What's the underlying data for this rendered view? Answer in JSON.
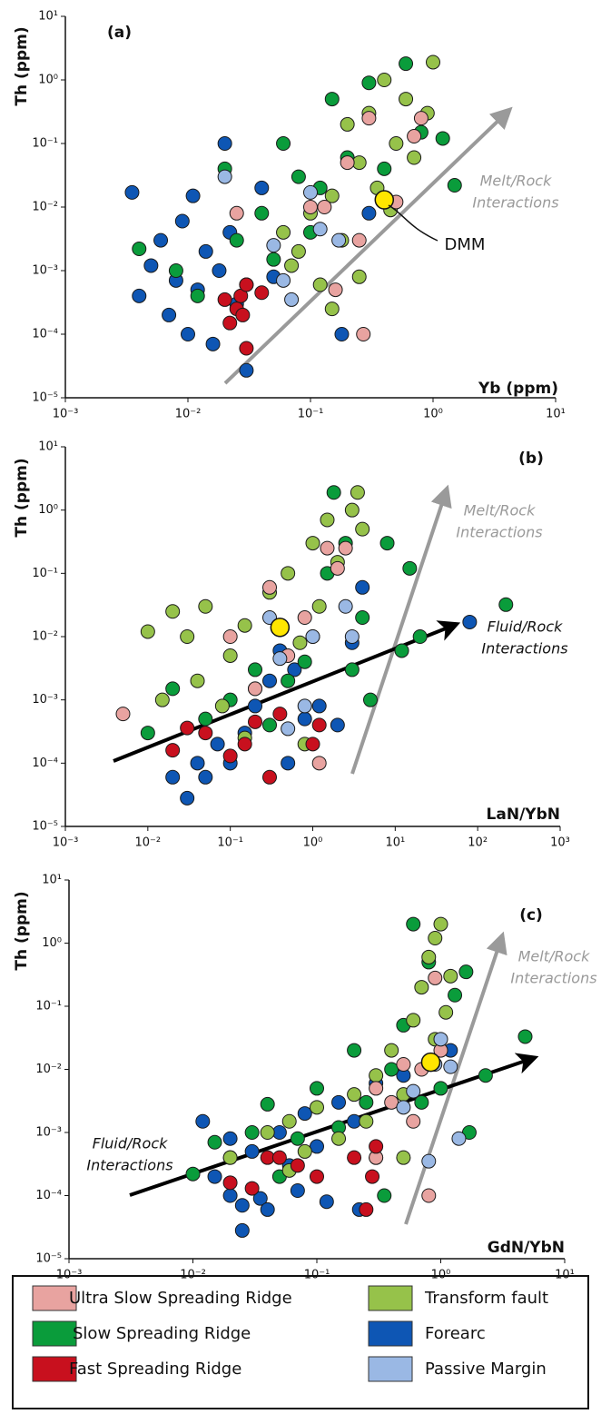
{
  "chart_data": [
    {
      "type": "scatter",
      "title": "(a)",
      "x_label": "Yb (ppm)",
      "y_label": "Th (ppm)",
      "log_x": true,
      "log_y": true,
      "xlim": [
        0.001,
        10
      ],
      "ylim": [
        1e-05,
        10
      ],
      "xticks": [
        {
          "value": 0.001,
          "label": "10⁻³"
        },
        {
          "value": 0.01,
          "label": "10⁻²"
        },
        {
          "value": 0.1,
          "label": "10⁻¹"
        },
        {
          "value": 1,
          "label": "10⁰"
        },
        {
          "value": 10,
          "label": "10¹"
        }
      ],
      "yticks": [
        {
          "value": 1e-05,
          "label": "10⁻⁵"
        },
        {
          "value": 0.0001,
          "label": "10⁻⁴"
        },
        {
          "value": 0.001,
          "label": "10⁻³"
        },
        {
          "value": 0.01,
          "label": "10⁻²"
        },
        {
          "value": 0.1,
          "label": "10⁻¹"
        },
        {
          "value": 1,
          "label": "10⁰"
        },
        {
          "value": 10,
          "label": "10¹"
        }
      ],
      "annotations": [
        [
          "Melt/Rock",
          "Interactions"
        ]
      ],
      "reference_point": {
        "x": 0.4,
        "y": 0.013,
        "color": "#ffe600",
        "label": "DMM"
      },
      "series": [
        {
          "name": "Ultra Slow Spreading Ridge",
          "color": "#e8a3a0",
          "x": [
            0.025,
            0.1,
            0.13,
            0.16,
            0.2,
            0.25,
            0.3,
            0.5,
            0.7,
            0.8,
            0.27
          ],
          "y": [
            0.008,
            0.01,
            0.01,
            0.0005,
            0.05,
            0.003,
            0.25,
            0.012,
            0.13,
            0.25,
            0.0001
          ]
        },
        {
          "name": "Slow Spreading Ridge",
          "color": "#0a9c3b",
          "x": [
            0.004,
            0.008,
            0.012,
            0.02,
            0.025,
            0.03,
            0.04,
            0.05,
            0.06,
            0.08,
            0.1,
            0.12,
            0.15,
            0.2,
            0.3,
            0.4,
            0.6,
            0.8,
            1.2,
            1.5
          ],
          "y": [
            0.0022,
            0.001,
            0.0004,
            0.04,
            0.003,
            0.0006,
            0.008,
            0.0015,
            0.1,
            0.03,
            0.004,
            0.02,
            0.5,
            0.06,
            0.9,
            0.04,
            1.8,
            0.15,
            0.12,
            0.022
          ]
        },
        {
          "name": "Fast Spreading Ridge",
          "color": "#c8101e",
          "x": [
            0.02,
            0.022,
            0.025,
            0.027,
            0.03,
            0.03,
            0.04,
            0.028
          ],
          "y": [
            0.00035,
            0.00015,
            0.00025,
            0.0004,
            6e-05,
            0.0006,
            0.00045,
            0.0002
          ]
        },
        {
          "name": "Transform fault",
          "color": "#96c24a",
          "x": [
            0.07,
            0.08,
            0.1,
            0.12,
            0.15,
            0.18,
            0.2,
            0.25,
            0.3,
            0.35,
            0.4,
            0.5,
            0.6,
            0.7,
            0.9,
            1.0,
            0.25,
            0.15,
            0.06,
            0.45
          ],
          "y": [
            0.0012,
            0.002,
            0.008,
            0.0006,
            0.015,
            0.003,
            0.2,
            0.05,
            0.3,
            0.02,
            1.0,
            0.1,
            0.5,
            0.06,
            0.3,
            1.9,
            0.0008,
            0.00025,
            0.004,
            0.009
          ]
        },
        {
          "name": "Forearc",
          "color": "#0e56b4",
          "x": [
            0.0035,
            0.004,
            0.005,
            0.006,
            0.007,
            0.008,
            0.009,
            0.01,
            0.011,
            0.012,
            0.014,
            0.016,
            0.018,
            0.02,
            0.022,
            0.025,
            0.03,
            0.04,
            0.05,
            0.18,
            0.3
          ],
          "y": [
            0.017,
            0.0004,
            0.0012,
            0.003,
            0.0002,
            0.0007,
            0.006,
            0.0001,
            0.015,
            0.0005,
            0.002,
            7e-05,
            0.001,
            0.1,
            0.004,
            0.0003,
            2.7e-05,
            0.02,
            0.0008,
            0.0001,
            0.008
          ]
        },
        {
          "name": "Passive Margin",
          "color": "#9ab8e4",
          "x": [
            0.02,
            0.05,
            0.06,
            0.07,
            0.1,
            0.12,
            0.17
          ],
          "y": [
            0.03,
            0.0025,
            0.0007,
            0.00035,
            0.017,
            0.0045,
            0.003
          ]
        }
      ]
    },
    {
      "type": "scatter",
      "title": "(b)",
      "x_label": "LaN/YbN",
      "y_label": "Th (ppm)",
      "log_x": true,
      "log_y": true,
      "xlim": [
        0.001,
        1000
      ],
      "ylim": [
        1e-05,
        10
      ],
      "xticks": [
        {
          "value": 0.001,
          "label": "10⁻³"
        },
        {
          "value": 0.01,
          "label": "10⁻²"
        },
        {
          "value": 0.1,
          "label": "10⁻¹"
        },
        {
          "value": 1,
          "label": "10⁰"
        },
        {
          "value": 10,
          "label": "10¹"
        },
        {
          "value": 100,
          "label": "10²"
        },
        {
          "value": 1000,
          "label": "10³"
        }
      ],
      "yticks": [
        {
          "value": 1e-05,
          "label": "10⁻⁵"
        },
        {
          "value": 0.0001,
          "label": "10⁻⁴"
        },
        {
          "value": 0.001,
          "label": "10⁻³"
        },
        {
          "value": 0.01,
          "label": "10⁻²"
        },
        {
          "value": 0.1,
          "label": "10⁻¹"
        },
        {
          "value": 1,
          "label": "10⁰"
        },
        {
          "value": 10,
          "label": "10¹"
        }
      ],
      "annotations": [
        [
          "Melt/Rock",
          "Interactions"
        ],
        [
          "Fluid/Rock",
          "Interactions"
        ]
      ],
      "reference_point": {
        "x": 0.4,
        "y": 0.014,
        "color": "#ffe600"
      },
      "series": [
        {
          "name": "Ultra Slow Spreading Ridge",
          "color": "#e8a3a0",
          "x": [
            0.005,
            0.1,
            0.2,
            0.3,
            0.5,
            0.8,
            1.5,
            2,
            2.5,
            1.2
          ],
          "y": [
            0.0006,
            0.01,
            0.0015,
            0.06,
            0.005,
            0.02,
            0.25,
            0.12,
            0.25,
            0.0001
          ]
        },
        {
          "name": "Slow Spreading Ridge",
          "color": "#0a9c3b",
          "x": [
            0.01,
            0.02,
            0.05,
            0.1,
            0.2,
            0.3,
            0.5,
            0.8,
            1,
            1.5,
            1.8,
            2.5,
            3,
            4,
            5,
            8,
            15,
            12,
            20,
            220
          ],
          "y": [
            0.0003,
            0.0015,
            0.0005,
            0.001,
            0.003,
            0.0004,
            0.002,
            0.004,
            0.01,
            0.1,
            1.9,
            0.3,
            0.003,
            0.02,
            0.001,
            0.3,
            0.12,
            0.006,
            0.01,
            0.032
          ]
        },
        {
          "name": "Fast Spreading Ridge",
          "color": "#c8101e",
          "x": [
            0.02,
            0.03,
            0.05,
            0.1,
            0.15,
            0.2,
            0.3,
            1,
            1.2,
            0.4
          ],
          "y": [
            0.00016,
            0.00036,
            0.0003,
            0.00013,
            0.0002,
            0.00045,
            6e-05,
            0.0002,
            0.0004,
            0.0006
          ]
        },
        {
          "name": "Transform fault",
          "color": "#96c24a",
          "x": [
            0.01,
            0.015,
            0.02,
            0.03,
            0.04,
            0.05,
            0.08,
            0.1,
            0.15,
            0.2,
            0.3,
            0.5,
            0.7,
            1,
            1.2,
            1.5,
            2,
            3,
            3.5,
            4,
            0.8,
            0.15
          ],
          "y": [
            0.012,
            0.001,
            0.025,
            0.01,
            0.002,
            0.03,
            0.0008,
            0.005,
            0.015,
            0.0015,
            0.05,
            0.1,
            0.008,
            0.3,
            0.03,
            0.7,
            0.15,
            1.0,
            1.9,
            0.5,
            0.0002,
            0.00025
          ]
        },
        {
          "name": "Forearc",
          "color": "#0e56b4",
          "x": [
            0.02,
            0.03,
            0.04,
            0.05,
            0.07,
            0.1,
            0.15,
            0.2,
            0.3,
            0.4,
            0.6,
            0.8,
            1.2,
            2,
            3,
            4,
            80,
            0.5
          ],
          "y": [
            6e-05,
            2.8e-05,
            0.0001,
            6e-05,
            0.0002,
            0.0001,
            0.0003,
            0.0008,
            0.002,
            0.006,
            0.003,
            0.0005,
            0.0008,
            0.0004,
            0.008,
            0.06,
            0.017,
            0.0001
          ]
        },
        {
          "name": "Passive Margin",
          "color": "#9ab8e4",
          "x": [
            0.3,
            0.4,
            0.5,
            0.8,
            1,
            2.5,
            3
          ],
          "y": [
            0.02,
            0.0045,
            0.00035,
            0.0008,
            0.01,
            0.03,
            0.01
          ]
        }
      ]
    },
    {
      "type": "scatter",
      "title": "(c)",
      "x_label": "GdN/YbN",
      "y_label": "Th (ppm)",
      "log_x": true,
      "log_y": true,
      "xlim": [
        0.001,
        10
      ],
      "ylim": [
        1e-05,
        10
      ],
      "xticks": [
        {
          "value": 0.001,
          "label": "10⁻³"
        },
        {
          "value": 0.01,
          "label": "10⁻²"
        },
        {
          "value": 0.1,
          "label": "10⁻¹"
        },
        {
          "value": 1,
          "label": "10⁰"
        },
        {
          "value": 10,
          "label": "10¹"
        }
      ],
      "yticks": [
        {
          "value": 1e-05,
          "label": "10⁻⁵"
        },
        {
          "value": 0.0001,
          "label": "10⁻⁴"
        },
        {
          "value": 0.001,
          "label": "10⁻³"
        },
        {
          "value": 0.01,
          "label": "10⁻²"
        },
        {
          "value": 0.1,
          "label": "10⁻¹"
        },
        {
          "value": 1,
          "label": "10⁰"
        },
        {
          "value": 10,
          "label": "10¹"
        }
      ],
      "annotations": [
        [
          "Melt/Rock",
          "Interactions"
        ],
        [
          "Fluid/Rock",
          "Interactions"
        ]
      ],
      "reference_point": {
        "x": 0.83,
        "y": 0.013,
        "color": "#ffe600"
      },
      "series": [
        {
          "name": "Ultra Slow Spreading Ridge",
          "color": "#e8a3a0",
          "x": [
            0.3,
            0.4,
            0.5,
            0.6,
            0.7,
            0.8,
            0.9,
            1.0,
            0.3
          ],
          "y": [
            0.005,
            0.003,
            0.012,
            0.0015,
            0.01,
            0.0001,
            0.28,
            0.02,
            0.0004
          ]
        },
        {
          "name": "Slow Spreading Ridge",
          "color": "#0a9c3b",
          "x": [
            0.01,
            0.015,
            0.02,
            0.03,
            0.04,
            0.05,
            0.07,
            0.1,
            0.15,
            0.2,
            0.25,
            0.3,
            0.4,
            0.5,
            0.6,
            0.7,
            0.8,
            1.0,
            1.3,
            1.6,
            1.7,
            2.3,
            4.8,
            0.35
          ],
          "y": [
            0.00022,
            0.0007,
            0.0004,
            0.001,
            0.0028,
            0.0002,
            0.0008,
            0.005,
            0.0012,
            0.02,
            0.003,
            0.0004,
            0.01,
            0.05,
            2.0,
            0.003,
            0.5,
            0.005,
            0.15,
            0.35,
            0.001,
            0.008,
            0.033,
            0.0001
          ]
        },
        {
          "name": "Fast Spreading Ridge",
          "color": "#c8101e",
          "x": [
            0.02,
            0.03,
            0.04,
            0.05,
            0.07,
            0.1,
            0.2,
            0.25,
            0.3,
            0.28
          ],
          "y": [
            0.00016,
            0.00013,
            0.0004,
            0.0004,
            0.0003,
            0.0002,
            0.0004,
            6e-05,
            0.0006,
            0.0002
          ]
        },
        {
          "name": "Transform fault",
          "color": "#96c24a",
          "x": [
            0.02,
            0.04,
            0.06,
            0.08,
            0.1,
            0.15,
            0.2,
            0.25,
            0.3,
            0.4,
            0.5,
            0.6,
            0.7,
            0.8,
            0.9,
            1.0,
            1.1,
            1.2,
            0.5,
            0.9,
            0.06
          ],
          "y": [
            0.0004,
            0.001,
            0.0015,
            0.0005,
            0.0025,
            0.0008,
            0.004,
            0.0015,
            0.008,
            0.02,
            0.004,
            0.06,
            0.2,
            0.6,
            1.2,
            2.0,
            0.08,
            0.3,
            0.0004,
            0.03,
            0.00025
          ]
        },
        {
          "name": "Forearc",
          "color": "#0e56b4",
          "x": [
            0.012,
            0.015,
            0.02,
            0.02,
            0.025,
            0.025,
            0.03,
            0.035,
            0.04,
            0.05,
            0.06,
            0.07,
            0.08,
            0.1,
            0.12,
            0.15,
            0.2,
            0.22,
            0.3,
            0.5,
            1.2
          ],
          "y": [
            0.0015,
            0.0002,
            0.0001,
            0.0008,
            7e-05,
            2.8e-05,
            0.0005,
            9e-05,
            6e-05,
            0.001,
            0.0003,
            0.00012,
            0.002,
            0.0006,
            8e-05,
            0.003,
            0.0015,
            6e-05,
            0.006,
            0.008,
            0.02
          ]
        },
        {
          "name": "Passive Margin",
          "color": "#9ab8e4",
          "x": [
            0.5,
            0.6,
            0.8,
            0.9,
            1.0,
            1.2,
            1.4
          ],
          "y": [
            0.0025,
            0.0045,
            0.00035,
            0.012,
            0.03,
            0.011,
            0.0008
          ]
        }
      ]
    }
  ]
}
